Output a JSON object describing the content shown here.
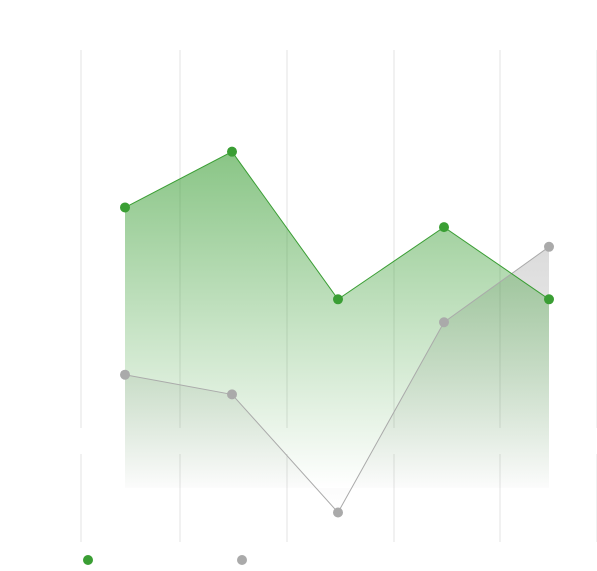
{
  "chart_data": {
    "type": "area",
    "title": "",
    "xlabel": "",
    "ylabel": "",
    "categories": [
      "",
      "",
      "",
      "",
      ""
    ],
    "series": [
      {
        "name": "",
        "color": "#3a9e34",
        "values": [
          82,
          99,
          54,
          76,
          54
        ]
      },
      {
        "name": "",
        "color": "#aaaaaa",
        "values": [
          31,
          25,
          -11,
          47,
          70
        ]
      }
    ],
    "ylim": [
      -20,
      130
    ],
    "grid": {
      "vertical": true,
      "horizontal": false
    },
    "legend": {
      "position": "bottom-left"
    }
  }
}
